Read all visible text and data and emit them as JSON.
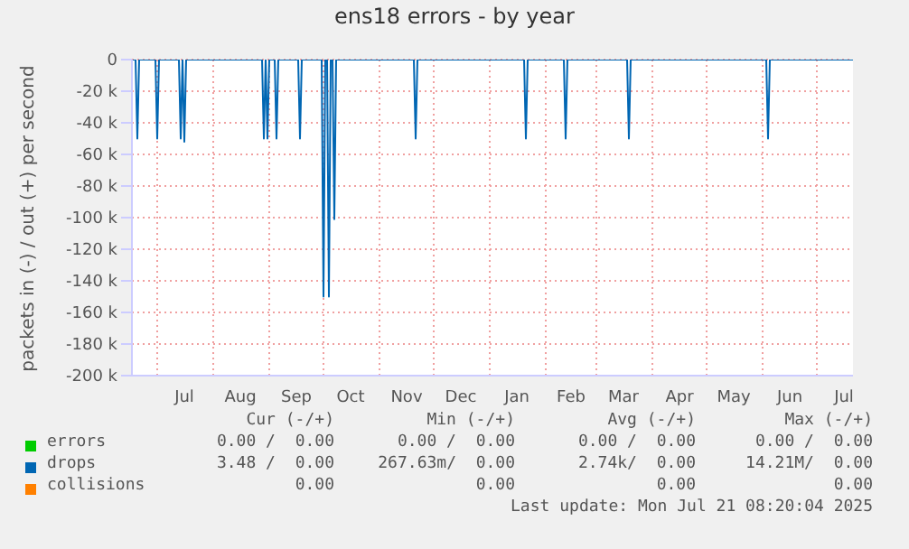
{
  "chart_data": {
    "type": "line",
    "title": "ens18 errors - by year",
    "ylabel": "packets in (-) / out (+) per second",
    "xlim": [
      "2024-06-17",
      "2025-07-21"
    ],
    "xticks": [
      {
        "value": "2024-07-01",
        "label": null
      },
      {
        "value": "2024-08-01",
        "label": null
      },
      {
        "value": "2024-09-01",
        "label": null
      },
      {
        "value": "2024-10-01",
        "label": null
      },
      {
        "value": "2024-11-01",
        "label": null
      },
      {
        "value": "2024-12-01",
        "label": null
      },
      {
        "value": "2025-01-01",
        "label": null
      },
      {
        "value": "2025-02-01",
        "label": null
      },
      {
        "value": "2025-03-01",
        "label": null
      },
      {
        "value": "2025-04-01",
        "label": null
      },
      {
        "value": "2025-05-01",
        "label": null
      },
      {
        "value": "2025-06-01",
        "label": null
      },
      {
        "value": "2025-07-01",
        "label": null
      },
      {
        "value": "2024-07-16",
        "label": "Jul"
      },
      {
        "value": "2024-08-16",
        "label": "Aug"
      },
      {
        "value": "2024-09-16",
        "label": "Sep"
      },
      {
        "value": "2024-10-16",
        "label": "Oct"
      },
      {
        "value": "2024-11-16",
        "label": "Nov"
      },
      {
        "value": "2024-12-16",
        "label": "Dec"
      },
      {
        "value": "2025-01-16",
        "label": "Jan"
      },
      {
        "value": "2025-02-15",
        "label": "Feb"
      },
      {
        "value": "2025-03-16",
        "label": "Mar"
      },
      {
        "value": "2025-04-16",
        "label": "Apr"
      },
      {
        "value": "2025-05-16",
        "label": "May"
      },
      {
        "value": "2025-06-16",
        "label": "Jun"
      },
      {
        "value": "2025-07-16",
        "label": "Jul"
      }
    ],
    "ylim": [
      -200000,
      0
    ],
    "yticks": [
      0,
      {
        "value": -20000,
        "label": "-20 k"
      },
      {
        "value": -40000,
        "label": "-40 k"
      },
      {
        "value": -60000,
        "label": "-60 k"
      },
      {
        "value": -80000,
        "label": "-80 k"
      },
      {
        "value": -100000,
        "label": "-100 k"
      },
      {
        "value": -120000,
        "label": "-120 k"
      },
      {
        "value": -140000,
        "label": "-140 k"
      },
      {
        "value": -160000,
        "label": "-160 k"
      },
      {
        "value": -180000,
        "label": "-180 k"
      },
      {
        "value": -200000,
        "label": "-200 k"
      }
    ],
    "grid": true,
    "legend": "bottom",
    "marker": "none",
    "line_style": "solid",
    "series": [
      {
        "name": "errors",
        "color": "#00cc00"
      },
      {
        "name": "drops",
        "color": "#0066b3",
        "x": [
          "2024-06-17",
          "2024-06-19",
          "2024-06-20",
          "2024-06-21",
          "2024-06-30",
          "2024-07-01",
          "2024-07-02",
          "2024-07-13",
          "2024-07-14",
          "2024-07-15",
          "2024-07-16",
          "2024-07-17",
          "2024-08-28",
          "2024-08-29",
          "2024-08-30",
          "2024-08-31",
          "2024-09-01",
          "2024-09-04",
          "2024-09-05",
          "2024-09-06",
          "2024-09-17",
          "2024-09-18",
          "2024-09-19",
          "2024-09-30",
          "2024-10-01",
          "2024-10-02",
          "2024-10-03",
          "2024-10-04",
          "2024-10-05",
          "2024-10-06",
          "2024-10-07",
          "2024-10-08",
          "2024-11-20",
          "2024-11-21",
          "2024-11-22",
          "2025-01-20",
          "2025-01-21",
          "2025-01-22",
          "2025-02-11",
          "2025-02-12",
          "2025-02-13",
          "2025-03-18",
          "2025-03-19",
          "2025-03-20",
          "2025-06-03",
          "2025-06-04",
          "2025-06-05",
          "2025-07-21"
        ],
        "values": [
          0,
          0,
          -50000,
          0,
          0,
          -50000,
          0,
          0,
          -50000,
          0,
          -52000,
          0,
          0,
          -50000,
          0,
          -50000,
          0,
          0,
          -50000,
          0,
          0,
          -50000,
          0,
          0,
          -150000,
          0,
          0,
          -150000,
          0,
          0,
          -101000,
          0,
          0,
          -50000,
          0,
          0,
          -50000,
          0,
          0,
          -50000,
          0,
          0,
          -50000,
          0,
          0,
          -50000,
          0,
          0
        ]
      },
      {
        "name": "collisions",
        "color": "#ff8000"
      }
    ],
    "annotations": [
      "Cur (-/+)",
      "Min (-/+)",
      "Avg (-/+)",
      "Max (-/+)",
      "0.00 /  0.00",
      "0.00 /  0.00",
      "0.00 /  0.00",
      "0.00 /  0.00",
      "3.48 /  0.00",
      "267.63m/  0.00",
      "2.74k/  0.00",
      "14.21M/  0.00",
      "0.00",
      "0.00",
      "0.00",
      "0.00",
      "Last update: Mon Jul 21 08:20:04 2025"
    ]
  }
}
